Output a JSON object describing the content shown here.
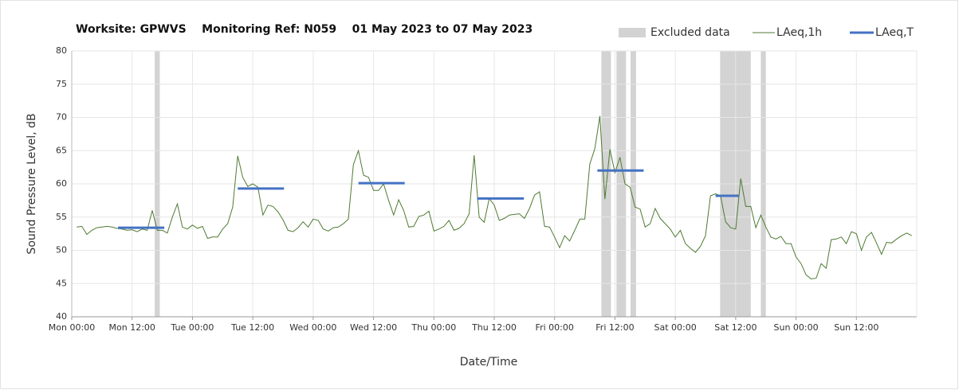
{
  "chart_data": {
    "type": "line",
    "title": "Worksite: GPWVS    Monitoring Ref: N059    01 May 2023 to 07 May 2023",
    "x_label": "Date/Time",
    "y_label": "Sound Pressure Level, dB",
    "xlim": [
      0,
      168
    ],
    "ylim": [
      40,
      80
    ],
    "yticks": [
      40,
      45,
      50,
      55,
      60,
      65,
      70,
      75,
      80
    ],
    "xticks": [
      {
        "value": 0,
        "label": "Mon 00:00"
      },
      {
        "value": 12,
        "label": "Mon 12:00"
      },
      {
        "value": 24,
        "label": "Tue 00:00"
      },
      {
        "value": 36,
        "label": "Tue 12:00"
      },
      {
        "value": 48,
        "label": "Wed 00:00"
      },
      {
        "value": 60,
        "label": "Wed 12:00"
      },
      {
        "value": 72,
        "label": "Thu 00:00"
      },
      {
        "value": 84,
        "label": "Thu 12:00"
      },
      {
        "value": 96,
        "label": "Fri 00:00"
      },
      {
        "value": 108,
        "label": "Fri 12:00"
      },
      {
        "value": 120,
        "label": "Sat 00:00"
      },
      {
        "value": 132,
        "label": "Sat 12:00"
      },
      {
        "value": 144,
        "label": "Sun 00:00"
      },
      {
        "value": 156,
        "label": "Sun 12:00"
      }
    ],
    "grid": true,
    "series": [
      {
        "name": "Excluded data",
        "color": "#d3d3d3",
        "ranges": [
          [
            16.5,
            17.5
          ],
          [
            105.3,
            107.2
          ],
          [
            108.3,
            110.2
          ],
          [
            111.1,
            112.2
          ],
          [
            128.9,
            135
          ],
          [
            137,
            138
          ]
        ]
      },
      {
        "name": "LAeq,1h",
        "color": "#4f7a33",
        "x": [
          1,
          2,
          3,
          4,
          5,
          6,
          7,
          8,
          9,
          10,
          11,
          12,
          13,
          14,
          15,
          16,
          17,
          18,
          19,
          20,
          21,
          22,
          23,
          24,
          25,
          26,
          27,
          28,
          29,
          30,
          31,
          32,
          33,
          34,
          35,
          36,
          37,
          38,
          39,
          40,
          41,
          42,
          43,
          44,
          45,
          46,
          47,
          48,
          49,
          50,
          51,
          52,
          53,
          54,
          55,
          56,
          57,
          58,
          59,
          60,
          61,
          62,
          63,
          64,
          65,
          66,
          67,
          68,
          69,
          70,
          71,
          72,
          73,
          74,
          75,
          76,
          77,
          78,
          79,
          80,
          81,
          82,
          83,
          84,
          85,
          86,
          87,
          88,
          89,
          90,
          91,
          92,
          93,
          94,
          95,
          96,
          97,
          98,
          99,
          100,
          101,
          102,
          103,
          104,
          105,
          106,
          107,
          108,
          109,
          110,
          111,
          112,
          113,
          114,
          115,
          116,
          117,
          118,
          119,
          120,
          121,
          122,
          123,
          124,
          125,
          126,
          127,
          128,
          129,
          130,
          131,
          132,
          133,
          134,
          135,
          136,
          137,
          138,
          139,
          140,
          141,
          142,
          143,
          144,
          145,
          146,
          147,
          148,
          149,
          150,
          151,
          152,
          153,
          154,
          155,
          156,
          157,
          158,
          159,
          160,
          161,
          162,
          163,
          164,
          165,
          166,
          167
        ],
        "values": [
          53.5,
          53.6,
          52.4,
          53,
          53.4,
          53.5,
          53.6,
          53.5,
          53.3,
          53.2,
          53,
          53.1,
          52.8,
          53.2,
          53,
          56,
          53,
          53,
          52.6,
          55,
          57,
          53.5,
          53.2,
          53.8,
          53.3,
          53.6,
          51.8,
          52,
          52,
          53.2,
          54,
          56.5,
          64.2,
          61,
          59.6,
          60,
          59.5,
          55.3,
          56.8,
          56.6,
          55.8,
          54.6,
          53,
          52.8,
          53.4,
          54.3,
          53.5,
          54.7,
          54.5,
          53.2,
          52.9,
          53.4,
          53.5,
          54,
          54.7,
          62.9,
          65,
          61.3,
          61,
          59,
          59,
          60,
          57.5,
          55.3,
          57.6,
          56,
          53.5,
          53.6,
          55.1,
          55.3,
          55.9,
          52.9,
          53.2,
          53.6,
          54.5,
          53,
          53.3,
          54,
          55.5,
          64.3,
          55,
          54.2,
          57.8,
          56.8,
          54.5,
          54.8,
          55.3,
          55.4,
          55.5,
          54.8,
          56.3,
          58.3,
          58.8,
          53.6,
          53.5,
          52,
          50.4,
          52.2,
          51.4,
          53,
          54.7,
          54.7,
          63,
          65.3,
          70.2,
          57.7,
          65.2,
          61.7,
          64,
          60,
          59.5,
          56.5,
          56.2,
          53.5,
          54,
          56.3,
          54.8,
          54,
          53.2,
          52,
          53,
          51,
          50.3,
          49.7,
          50.6,
          52.2,
          58.2,
          58.5,
          58.2,
          54.3,
          53.4,
          53.2,
          60.8,
          56.6,
          56.6,
          53.4,
          55.3,
          53.5,
          52,
          51.7,
          52.1,
          51,
          51,
          49,
          48,
          46.3,
          45.7,
          45.8,
          48,
          47.3,
          51.6,
          51.7,
          52,
          51,
          52.8,
          52.5,
          50,
          52,
          52.7,
          51.1,
          49.4,
          51.2,
          51.1,
          51.7,
          52.2,
          52.6,
          52.2
        ]
      },
      {
        "name": "LAeq,T",
        "color": "#4472c4",
        "segments": [
          {
            "x": [
              9.2,
              18.4
            ],
            "value": 53.4
          },
          {
            "x": [
              33,
              42.2
            ],
            "value": 59.3
          },
          {
            "x": [
              57,
              66.2
            ],
            "value": 60.1
          },
          {
            "x": [
              80.6,
              89.9
            ],
            "value": 57.8
          },
          {
            "x": [
              104.5,
              113.7
            ],
            "value": 62
          },
          {
            "x": [
              128,
              132.6
            ],
            "value": 58.2
          }
        ]
      }
    ]
  }
}
